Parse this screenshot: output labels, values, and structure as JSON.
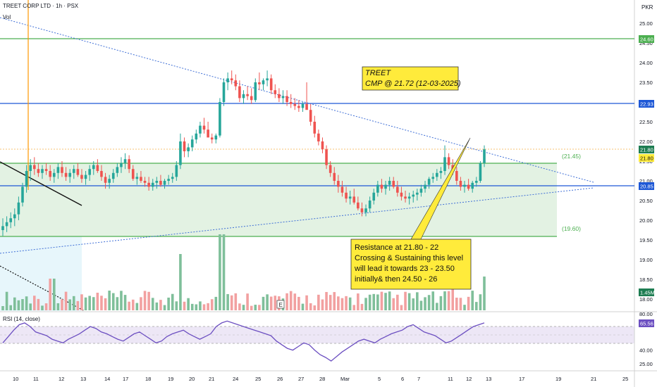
{
  "header": {
    "symbol_title": "TREET CORP LTD · 1h · PSX",
    "volume_label": "Vol",
    "currency": "PKR"
  },
  "price_axis": {
    "ticks": [
      "25.00",
      "24.50",
      "24.00",
      "23.50",
      "23.00",
      "22.50",
      "22.00",
      "21.50",
      "21.00",
      "20.50",
      "20.00",
      "19.50",
      "19.00",
      "18.50",
      "18.00"
    ],
    "min": 17.8,
    "max": 25.2
  },
  "rsi_axis": {
    "ticks": [
      "80.00",
      "40.00",
      "25.00"
    ]
  },
  "time_axis": {
    "labels": [
      "10",
      "11",
      "12",
      "13",
      "14",
      "17",
      "18",
      "19",
      "20",
      "21",
      "24",
      "25",
      "26",
      "27",
      "28",
      "Mar",
      "5",
      "6",
      "7",
      "11",
      "12",
      "13",
      "17",
      "19",
      "21",
      "25"
    ]
  },
  "badges": {
    "level_24_60": "24.60",
    "level_22_93": "22.93",
    "last_price": "21.80",
    "last_price_2": "21.80",
    "level_20_85": "20.85",
    "volume": "1.45M",
    "rsi_value": "65.56"
  },
  "zone_labels": {
    "upper": "(21.45)",
    "lower": "(19.60)"
  },
  "rsi_label": "RSI (14, close)",
  "event_marker": "E",
  "annotations": {
    "title_line1": "TREET",
    "title_line2": "CMP @ 21.72 (12-03-2025)",
    "note_line1": "Resistance at 21.80 - 22",
    "note_line2": "Crossing & Sustaining this level",
    "note_line3": "will lead it towards 23 - 23.50",
    "note_line4": "initially& then 24.50 - 26"
  },
  "colors": {
    "up": "#26a69a",
    "down": "#ef5350",
    "zone_fill": "#e3f2e3",
    "green_line": "#4caf50",
    "blue_line": "#1e58d6",
    "annotation_fill": "#ffeb3b",
    "rsi_line": "#6c4fc1"
  },
  "chart_data": {
    "type": "candlestick",
    "title": "TREET CORP LTD · 1h · PSX",
    "ylim": [
      17.8,
      25.2
    ],
    "horizontal_levels": [
      24.6,
      22.93,
      21.45,
      20.85,
      19.6
    ],
    "last_price": 21.8,
    "candles": [
      [
        19.75,
        20.05,
        19.6,
        19.85
      ],
      [
        19.85,
        20.1,
        19.7,
        19.95
      ],
      [
        19.95,
        20.2,
        19.8,
        20.05
      ],
      [
        20.05,
        20.3,
        19.85,
        20.15
      ],
      [
        20.15,
        20.6,
        20.0,
        20.45
      ],
      [
        20.45,
        20.95,
        20.35,
        20.85
      ],
      [
        20.85,
        21.4,
        20.7,
        21.25
      ],
      [
        21.25,
        21.55,
        21.0,
        21.4
      ],
      [
        21.4,
        21.6,
        21.15,
        21.3
      ],
      [
        21.3,
        21.45,
        21.1,
        21.2
      ],
      [
        21.2,
        21.4,
        21.05,
        21.3
      ],
      [
        21.3,
        21.45,
        21.15,
        21.25
      ],
      [
        21.25,
        21.4,
        21.0,
        21.1
      ],
      [
        21.1,
        21.3,
        20.95,
        21.2
      ],
      [
        21.2,
        21.45,
        21.05,
        21.35
      ],
      [
        21.35,
        21.5,
        21.1,
        21.2
      ],
      [
        21.2,
        21.35,
        21.0,
        21.1
      ],
      [
        21.1,
        21.3,
        20.95,
        21.2
      ],
      [
        21.2,
        21.4,
        21.05,
        21.3
      ],
      [
        21.3,
        21.45,
        21.1,
        21.15
      ],
      [
        21.15,
        21.3,
        20.95,
        21.05
      ],
      [
        21.05,
        21.25,
        20.9,
        21.15
      ],
      [
        21.15,
        21.4,
        21.0,
        21.3
      ],
      [
        21.3,
        21.5,
        21.15,
        21.4
      ],
      [
        21.4,
        21.55,
        21.2,
        21.25
      ],
      [
        21.25,
        21.4,
        21.0,
        21.1
      ],
      [
        21.1,
        21.2,
        20.8,
        20.95
      ],
      [
        20.95,
        21.15,
        20.8,
        21.05
      ],
      [
        21.05,
        21.3,
        20.95,
        21.2
      ],
      [
        21.2,
        21.45,
        21.1,
        21.35
      ],
      [
        21.35,
        21.6,
        21.2,
        21.45
      ],
      [
        21.45,
        21.7,
        21.3,
        21.55
      ],
      [
        21.55,
        21.65,
        21.2,
        21.3
      ],
      [
        21.3,
        21.4,
        21.0,
        21.05
      ],
      [
        21.05,
        21.2,
        20.9,
        21.1
      ],
      [
        21.1,
        21.25,
        20.95,
        21.0
      ],
      [
        21.0,
        21.1,
        20.85,
        20.95
      ],
      [
        20.95,
        21.1,
        20.75,
        20.85
      ],
      [
        20.85,
        21.05,
        20.75,
        20.95
      ],
      [
        20.95,
        21.1,
        20.8,
        21.0
      ],
      [
        21.0,
        21.15,
        20.85,
        20.9
      ],
      [
        20.9,
        21.05,
        20.8,
        21.0
      ],
      [
        21.0,
        21.15,
        20.9,
        21.05
      ],
      [
        21.05,
        21.2,
        20.95,
        21.1
      ],
      [
        21.1,
        21.5,
        21.0,
        21.4
      ],
      [
        21.4,
        22.2,
        21.3,
        22.0
      ],
      [
        22.0,
        22.1,
        21.6,
        21.75
      ],
      [
        21.75,
        21.95,
        21.6,
        21.85
      ],
      [
        21.85,
        22.15,
        21.75,
        22.05
      ],
      [
        22.05,
        22.3,
        21.95,
        22.2
      ],
      [
        22.2,
        22.5,
        22.1,
        22.4
      ],
      [
        22.4,
        22.6,
        22.2,
        22.3
      ],
      [
        22.3,
        22.5,
        22.15,
        22.1
      ],
      [
        22.1,
        22.2,
        21.95,
        22.05
      ],
      [
        22.05,
        22.2,
        21.95,
        22.15
      ],
      [
        22.15,
        23.1,
        22.1,
        23.0
      ],
      [
        23.0,
        23.6,
        22.9,
        23.5
      ],
      [
        23.5,
        23.75,
        23.3,
        23.6
      ],
      [
        23.6,
        23.8,
        23.45,
        23.55
      ],
      [
        23.55,
        23.7,
        23.3,
        23.4
      ],
      [
        23.4,
        23.55,
        23.0,
        23.1
      ],
      [
        23.1,
        23.3,
        22.95,
        23.2
      ],
      [
        23.2,
        23.4,
        23.05,
        23.15
      ],
      [
        23.15,
        23.35,
        22.95,
        23.05
      ],
      [
        23.05,
        23.6,
        23.0,
        23.5
      ],
      [
        23.5,
        23.75,
        23.3,
        23.45
      ],
      [
        23.45,
        23.6,
        23.3,
        23.55
      ],
      [
        23.55,
        23.8,
        23.4,
        23.6
      ],
      [
        23.6,
        23.7,
        23.2,
        23.3
      ],
      [
        23.3,
        23.45,
        23.1,
        23.2
      ],
      [
        23.2,
        23.35,
        23.0,
        23.1
      ],
      [
        23.1,
        23.3,
        22.95,
        23.15
      ],
      [
        23.15,
        23.3,
        22.9,
        23.0
      ],
      [
        23.0,
        23.2,
        22.85,
        22.95
      ],
      [
        22.95,
        23.1,
        22.8,
        22.9
      ],
      [
        22.9,
        23.05,
        22.75,
        22.85
      ],
      [
        22.85,
        23.0,
        22.75,
        22.95
      ],
      [
        22.95,
        23.5,
        22.85,
        22.8
      ],
      [
        22.8,
        22.95,
        22.4,
        22.5
      ],
      [
        22.5,
        22.65,
        22.1,
        22.2
      ],
      [
        22.2,
        22.3,
        21.9,
        22.0
      ],
      [
        22.0,
        22.1,
        21.7,
        21.8
      ],
      [
        21.8,
        21.9,
        21.3,
        21.4
      ],
      [
        21.4,
        21.5,
        21.1,
        21.2
      ],
      [
        21.2,
        21.35,
        20.9,
        21.0
      ],
      [
        21.0,
        21.15,
        20.7,
        20.85
      ],
      [
        20.85,
        21.0,
        20.6,
        20.7
      ],
      [
        20.7,
        20.85,
        20.45,
        20.55
      ],
      [
        20.55,
        20.75,
        20.4,
        20.6
      ],
      [
        20.6,
        20.8,
        20.4,
        20.45
      ],
      [
        20.45,
        20.6,
        20.25,
        20.3
      ],
      [
        20.3,
        20.45,
        20.1,
        20.2
      ],
      [
        20.2,
        20.4,
        20.1,
        20.3
      ],
      [
        20.3,
        20.6,
        20.2,
        20.5
      ],
      [
        20.5,
        20.8,
        20.4,
        20.7
      ],
      [
        20.7,
        21.0,
        20.6,
        20.9
      ],
      [
        20.9,
        21.05,
        20.7,
        20.8
      ],
      [
        20.8,
        21.0,
        20.65,
        20.9
      ],
      [
        20.9,
        21.1,
        20.75,
        21.0
      ],
      [
        21.0,
        21.1,
        20.8,
        20.85
      ],
      [
        20.85,
        21.0,
        20.6,
        20.7
      ],
      [
        20.7,
        20.85,
        20.5,
        20.6
      ],
      [
        20.6,
        20.75,
        20.45,
        20.55
      ],
      [
        20.55,
        20.7,
        20.4,
        20.6
      ],
      [
        20.6,
        20.75,
        20.45,
        20.65
      ],
      [
        20.65,
        20.8,
        20.5,
        20.7
      ],
      [
        20.7,
        20.9,
        20.6,
        20.8
      ],
      [
        20.8,
        21.0,
        20.7,
        20.9
      ],
      [
        20.9,
        21.1,
        20.8,
        21.05
      ],
      [
        21.05,
        21.2,
        20.95,
        21.1
      ],
      [
        21.1,
        21.3,
        21.0,
        21.2
      ],
      [
        21.2,
        21.35,
        21.05,
        21.25
      ],
      [
        21.25,
        21.9,
        21.15,
        21.6
      ],
      [
        21.6,
        21.7,
        21.3,
        21.4
      ],
      [
        21.4,
        21.55,
        21.15,
        21.25
      ],
      [
        21.25,
        21.35,
        20.9,
        21.0
      ],
      [
        21.0,
        21.1,
        20.75,
        20.85
      ],
      [
        20.85,
        21.0,
        20.7,
        20.9
      ],
      [
        20.9,
        21.05,
        20.75,
        20.8
      ],
      [
        20.8,
        21.0,
        20.7,
        20.95
      ],
      [
        20.95,
        21.1,
        20.85,
        21.0
      ],
      [
        21.0,
        21.5,
        20.95,
        21.45
      ],
      [
        21.45,
        21.9,
        21.35,
        21.8
      ]
    ],
    "volume_max": 1.45,
    "rsi": [
      48,
      55,
      62,
      68,
      70,
      66,
      60,
      58,
      56,
      52,
      50,
      48,
      52,
      55,
      58,
      62,
      66,
      64,
      60,
      58,
      55,
      52,
      50,
      54,
      58,
      60,
      56,
      52,
      48,
      50,
      55,
      58,
      60,
      62,
      58,
      55,
      52,
      55,
      58,
      66,
      70,
      72,
      70,
      68,
      66,
      64,
      62,
      60,
      58,
      56,
      50,
      46,
      42,
      40,
      44,
      48,
      46,
      40,
      35,
      32,
      28,
      33,
      38,
      42,
      46,
      50,
      52,
      50,
      48,
      52,
      55,
      58,
      60,
      62,
      66,
      68,
      64,
      60,
      58,
      56,
      52,
      48,
      50,
      54,
      58,
      62,
      66,
      68,
      70
    ]
  }
}
